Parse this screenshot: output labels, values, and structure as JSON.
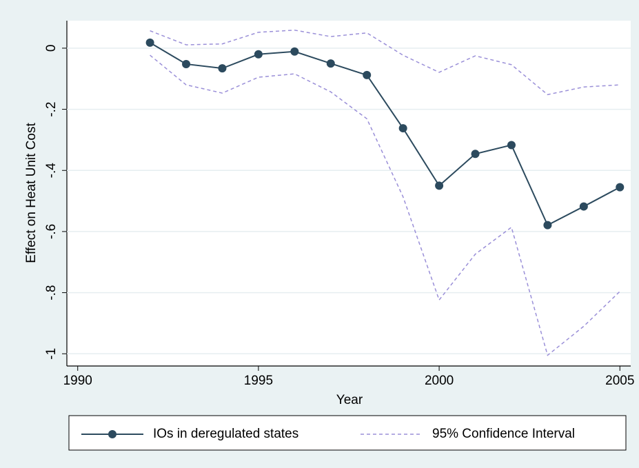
{
  "chart_data": {
    "type": "line",
    "x_label": "Year",
    "y_label": "Effect on Heat Unit Cost",
    "x": [
      1992,
      1993,
      1994,
      1995,
      1996,
      1997,
      1998,
      1999,
      2000,
      2001,
      2002,
      2003,
      2004,
      2005
    ],
    "series": [
      {
        "name": "IOs in deregulated states",
        "color": "#2c4a5e",
        "values": [
          0.018,
          -0.052,
          -0.066,
          -0.02,
          -0.011,
          -0.05,
          -0.088,
          -0.262,
          -0.45,
          -0.346,
          -0.317,
          -0.579,
          -0.518,
          -0.455
        ]
      }
    ],
    "ci": {
      "name": "95% Confidence Interval",
      "color": "#9a8fd8",
      "upper": [
        0.057,
        0.011,
        0.014,
        0.052,
        0.059,
        0.038,
        0.05,
        -0.023,
        -0.079,
        -0.025,
        -0.054,
        -0.152,
        -0.127,
        -0.12
      ],
      "lower": [
        -0.023,
        -0.12,
        -0.147,
        -0.095,
        -0.084,
        -0.143,
        -0.231,
        -0.486,
        -0.824,
        -0.674,
        -0.586,
        -1.005,
        -0.91,
        -0.796
      ]
    },
    "xlim": [
      1989.7,
      2005.3
    ],
    "ylim": [
      -1.04,
      0.09
    ],
    "xticks": [
      1990,
      1995,
      2000,
      2005
    ],
    "yticks": [
      0,
      {
        "value": -0.2,
        "label": "-.2"
      },
      {
        "value": -0.4,
        "label": "-.4"
      },
      {
        "value": -0.6,
        "label": "-.6"
      },
      {
        "value": -0.8,
        "label": "-.8"
      },
      -1
    ],
    "grid": true
  }
}
